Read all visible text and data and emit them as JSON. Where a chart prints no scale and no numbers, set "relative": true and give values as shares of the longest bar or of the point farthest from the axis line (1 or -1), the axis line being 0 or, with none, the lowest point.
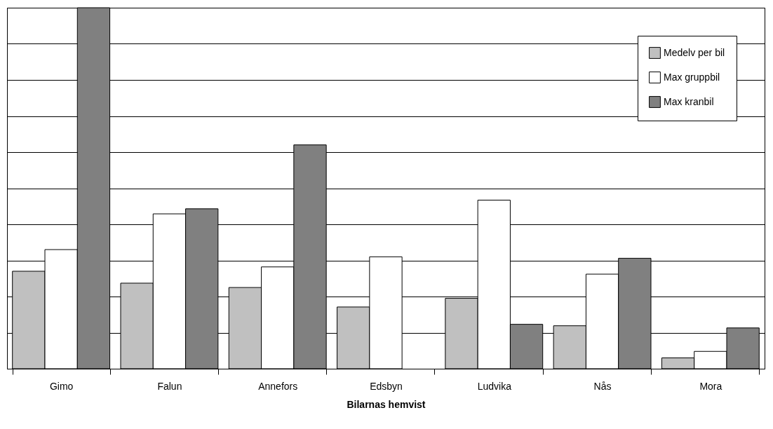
{
  "chart_data": {
    "type": "bar",
    "relative": true,
    "xlabel": "Bilarnas hemvist",
    "categories": [
      "Gimo",
      "Falun",
      "Annefors",
      "Edsbyn",
      "Ludvika",
      "Nås",
      "Mora"
    ],
    "series": [
      {
        "name": "Medelv per bil",
        "color": "#c0c0c0",
        "values": [
          0.27,
          0.237,
          0.225,
          0.171,
          0.195,
          0.119,
          0.03
        ]
      },
      {
        "name": "Max gruppbil",
        "color": "#ffffff",
        "values": [
          0.33,
          0.429,
          0.282,
          0.31,
          0.467,
          0.262,
          0.048
        ]
      },
      {
        "name": "Max kranbil",
        "color": "#808080",
        "values": [
          1,
          0.443,
          0.62,
          null,
          0.123,
          0.306,
          0.113
        ]
      }
    ],
    "grid": "y",
    "legend": "top right"
  }
}
